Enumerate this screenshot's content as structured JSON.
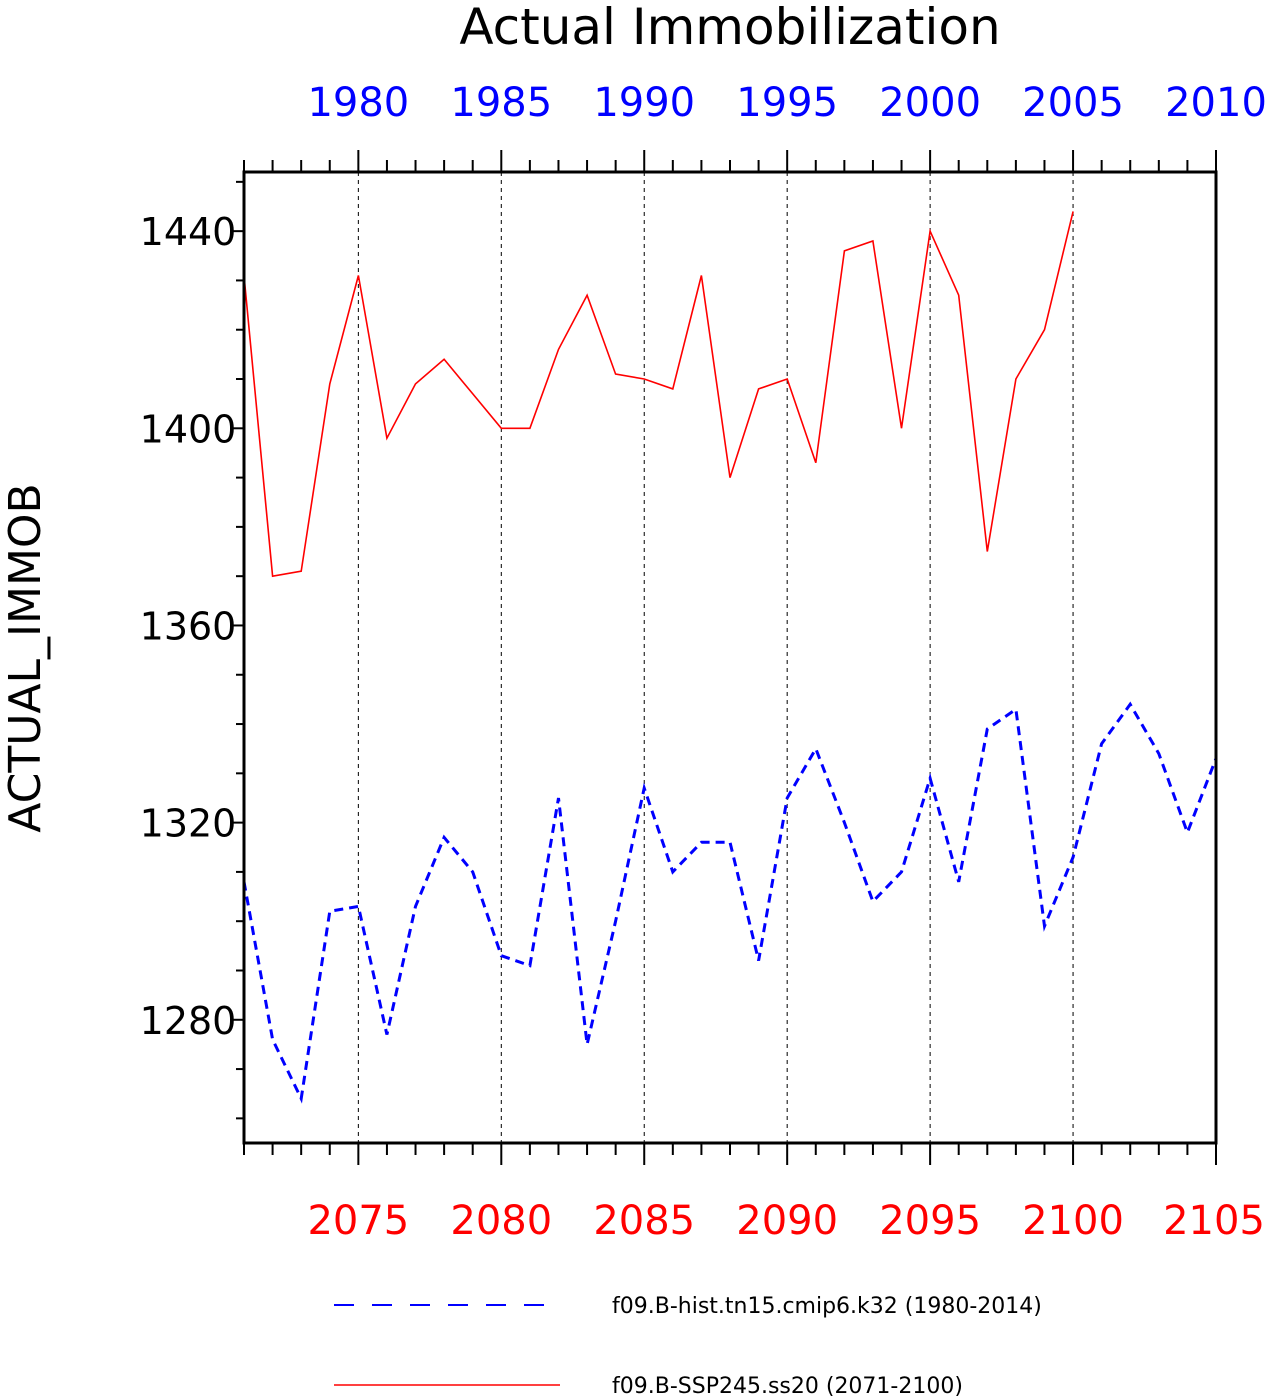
{
  "chart_data": {
    "type": "line",
    "title": "Actual Immobilization",
    "ylabel": "ACTUAL_IMMOB",
    "ylim": [
      1255,
      1452
    ],
    "yticks": [
      1280,
      1320,
      1360,
      1400,
      1440
    ],
    "grid": "vertical dashed at major ticks",
    "top_axis": {
      "color": "#0000ff",
      "range": [
        1976,
        2010
      ],
      "ticks": [
        1980,
        1985,
        1990,
        1995,
        2000,
        2005,
        2010
      ]
    },
    "bottom_axis": {
      "color": "#ff0000",
      "range": [
        2071,
        2105
      ],
      "ticks": [
        2075,
        2080,
        2085,
        2090,
        2095,
        2100,
        2105
      ]
    },
    "series": [
      {
        "name": "f09.B-hist.tn15.cmip6.k32 (1980-2014)",
        "color": "#0000ff",
        "style": "dashed",
        "x": [
          1976,
          1977,
          1978,
          1979,
          1980,
          1981,
          1982,
          1983,
          1984,
          1985,
          1986,
          1987,
          1988,
          1989,
          1990,
          1991,
          1992,
          1993,
          1994,
          1995,
          1996,
          1997,
          1998,
          1999,
          2000,
          2001,
          2002,
          2003,
          2004,
          2005,
          2006,
          2007,
          2008,
          2009,
          2010
        ],
        "values": [
          1308,
          1276,
          1264,
          1302,
          1303,
          1277,
          1303,
          1317,
          1310,
          1293,
          1291,
          1325,
          1275,
          1300,
          1327,
          1310,
          1316,
          1316,
          1292,
          1325,
          1335,
          1320,
          1304,
          1310,
          1329,
          1308,
          1339,
          1343,
          1299,
          1313,
          1336,
          1344,
          1334,
          1318,
          1333
        ]
      },
      {
        "name": "f09.B-SSP245.ss20 (2071-2100)",
        "color": "#ff0000",
        "style": "solid",
        "x": [
          2071,
          2072,
          2073,
          2074,
          2075,
          2076,
          2077,
          2078,
          2079,
          2080,
          2081,
          2082,
          2083,
          2084,
          2085,
          2086,
          2087,
          2088,
          2089,
          2090,
          2091,
          2092,
          2093,
          2094,
          2095,
          2096,
          2097,
          2098,
          2099,
          2100
        ],
        "values": [
          1431,
          1370,
          1371,
          1409,
          1431,
          1398,
          1409,
          1414,
          1407,
          1400,
          1400,
          1416,
          1427,
          1411,
          1410,
          1408,
          1431,
          1390,
          1408,
          1410,
          1393,
          1436,
          1438,
          1400,
          1440,
          1427,
          1375,
          1410,
          1420,
          1444
        ]
      }
    ]
  }
}
